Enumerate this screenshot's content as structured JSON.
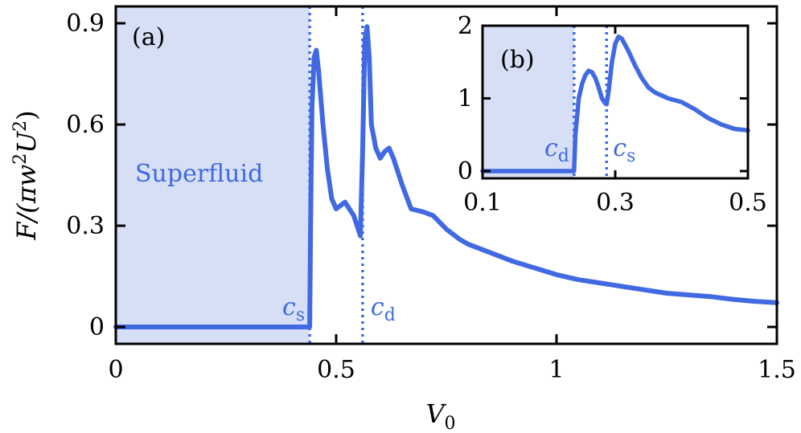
{
  "colors": {
    "line": "#4169e1",
    "shade": "#d6dff5",
    "axis": "#000000"
  },
  "chart_data": [
    {
      "panel": "(a)",
      "type": "line",
      "xlabel": "V_0",
      "ylabel": "F/(πw²U²)",
      "xlim": [
        0,
        1.5
      ],
      "ylim": [
        -0.05,
        0.95
      ],
      "xticks": [
        0,
        0.5,
        1,
        1.5
      ],
      "xtick_labels": [
        "0",
        "0.5",
        "1",
        "1.5"
      ],
      "yticks": [
        0,
        0.3,
        0.6,
        0.9
      ],
      "ytick_labels": [
        "0",
        "0.3",
        "0.6",
        "0.9"
      ],
      "grid": false,
      "shaded_region": {
        "x": [
          0,
          0.44
        ],
        "label": "Superfluid"
      },
      "vlines": [
        {
          "x": 0.44,
          "label": "c",
          "sub": "s"
        },
        {
          "x": 0.56,
          "label": "c",
          "sub": "d"
        }
      ],
      "series": [
        {
          "x": [
            0,
            0.44,
            0.442,
            0.445,
            0.45,
            0.455,
            0.46,
            0.47,
            0.48,
            0.49,
            0.5,
            0.52,
            0.54,
            0.55,
            0.555,
            0.56,
            0.565,
            0.57,
            0.575,
            0.58,
            0.59,
            0.6,
            0.61,
            0.62,
            0.63,
            0.65,
            0.67,
            0.7,
            0.72,
            0.75,
            0.78,
            0.8,
            0.85,
            0.9,
            0.95,
            1.0,
            1.05,
            1.1,
            1.15,
            1.2,
            1.25,
            1.3,
            1.35,
            1.4,
            1.45,
            1.5
          ],
          "y": [
            0,
            0,
            0.3,
            0.65,
            0.8,
            0.82,
            0.76,
            0.6,
            0.47,
            0.38,
            0.35,
            0.37,
            0.33,
            0.29,
            0.27,
            0.52,
            0.85,
            0.89,
            0.8,
            0.6,
            0.53,
            0.5,
            0.52,
            0.53,
            0.5,
            0.42,
            0.35,
            0.34,
            0.33,
            0.29,
            0.26,
            0.245,
            0.22,
            0.195,
            0.175,
            0.155,
            0.14,
            0.13,
            0.12,
            0.11,
            0.1,
            0.095,
            0.09,
            0.082,
            0.076,
            0.072
          ]
        }
      ]
    },
    {
      "panel": "(b)",
      "type": "line",
      "xlim": [
        0.1,
        0.5
      ],
      "ylim": [
        -0.1,
        2.0
      ],
      "xticks": [
        0.1,
        0.3,
        0.5
      ],
      "xtick_labels": [
        "0.1",
        "0.3",
        "0.5"
      ],
      "yticks": [
        0,
        1,
        2
      ],
      "ytick_labels": [
        "0",
        "1",
        "2"
      ],
      "grid": false,
      "shaded_region": {
        "x": [
          0.1,
          0.238
        ]
      },
      "vlines": [
        {
          "x": 0.238,
          "label": "c",
          "sub": "d"
        },
        {
          "x": 0.287,
          "label": "c",
          "sub": "s"
        }
      ],
      "series": [
        {
          "x": [
            0.1,
            0.238,
            0.24,
            0.245,
            0.25,
            0.255,
            0.26,
            0.265,
            0.27,
            0.275,
            0.28,
            0.285,
            0.287,
            0.29,
            0.295,
            0.3,
            0.305,
            0.31,
            0.32,
            0.33,
            0.34,
            0.35,
            0.36,
            0.38,
            0.4,
            0.42,
            0.44,
            0.46,
            0.48,
            0.5
          ],
          "y": [
            0,
            0,
            0.5,
            1.0,
            1.2,
            1.32,
            1.38,
            1.36,
            1.28,
            1.15,
            1.0,
            0.93,
            0.92,
            1.1,
            1.5,
            1.75,
            1.85,
            1.82,
            1.65,
            1.45,
            1.28,
            1.15,
            1.08,
            1.0,
            0.95,
            0.85,
            0.73,
            0.64,
            0.58,
            0.56
          ]
        }
      ]
    }
  ]
}
